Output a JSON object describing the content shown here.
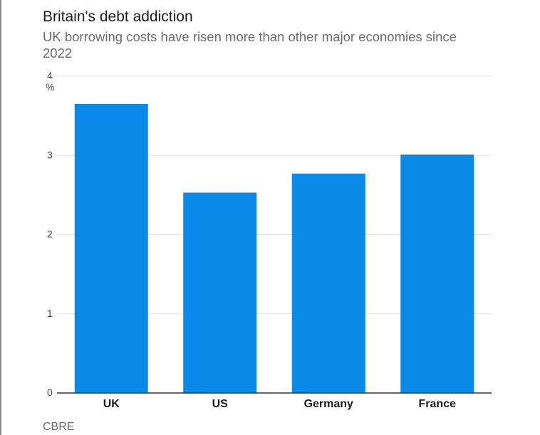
{
  "header": {
    "title": "Britain's debt addiction",
    "subtitle": "UK borrowing costs have risen more than other major economies since 2022"
  },
  "footer": {
    "source": "CBRE"
  },
  "colors": {
    "bar": "#0a8ae8",
    "gridline": "#e3e3e3",
    "baseline": "#333333"
  },
  "chart_data": {
    "type": "bar",
    "title": "Britain's debt addiction",
    "subtitle": "UK borrowing costs have risen more than other major economies since 2022",
    "categories": [
      "UK",
      "US",
      "Germany",
      "France"
    ],
    "values": [
      3.65,
      2.53,
      2.77,
      3.01
    ],
    "xlabel": "",
    "ylabel": "%",
    "ylim": [
      0,
      4
    ],
    "yticks": [
      "0",
      "1",
      "2",
      "3",
      "4"
    ],
    "grid": true,
    "legend": "none",
    "source": "CBRE"
  }
}
